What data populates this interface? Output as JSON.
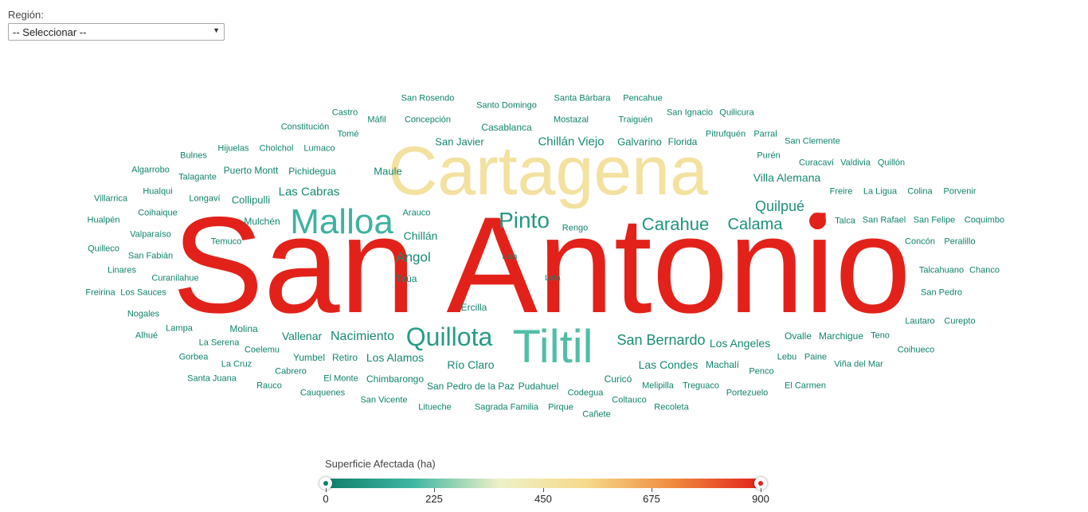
{
  "filter": {
    "label": "Región:",
    "selected": "-- Seleccionar --"
  },
  "colors": {
    "scale": [
      "#0e7f6a",
      "#3fb6a3",
      "#eef1c8",
      "#f6d98a",
      "#f08a3e",
      "#e2221a"
    ],
    "marker": "#e2221a"
  },
  "words": [
    {
      "text": "San Antonio",
      "value": 900
    },
    {
      "text": "Cartagena",
      "value": 480
    },
    {
      "text": "Tiltil",
      "value": 200
    },
    {
      "text": "Malloa",
      "value": 170
    },
    {
      "text": "Quillota",
      "value": 90
    },
    {
      "text": "Pinto",
      "value": 80
    },
    {
      "text": "Carahue",
      "value": 70
    },
    {
      "text": "Calama",
      "value": 60
    },
    {
      "text": "Quilpué",
      "value": 55
    },
    {
      "text": "San Bernardo",
      "value": 45
    },
    {
      "text": "Nacimiento",
      "value": 40
    },
    {
      "text": "Angol",
      "value": 40
    },
    {
      "text": "Las Cabras",
      "value": 35
    },
    {
      "text": "Chillán Viejo",
      "value": 35
    },
    {
      "text": "Villa Alemana",
      "value": 32
    },
    {
      "text": "Los Angeles",
      "value": 32
    },
    {
      "text": "Los Alamos",
      "value": 32
    },
    {
      "text": "Vallenar",
      "value": 30
    },
    {
      "text": "Río Claro",
      "value": 30
    },
    {
      "text": "Las Condes",
      "value": 30
    },
    {
      "text": "Chillán",
      "value": 28
    },
    {
      "text": "Collipulli",
      "value": 28
    },
    {
      "text": "Galvarino",
      "value": 26
    },
    {
      "text": "Maule",
      "value": 26
    },
    {
      "text": "San Javier",
      "value": 26
    },
    {
      "text": "Pichidegua",
      "value": 22
    },
    {
      "text": "Casablanca",
      "value": 22
    },
    {
      "text": "Tirúa",
      "value": 20
    },
    {
      "text": "Ercilla",
      "value": 20
    },
    {
      "text": "Ovalle",
      "value": 20
    },
    {
      "text": "Retiro",
      "value": 20
    },
    {
      "text": "Yumbel",
      "value": 20
    },
    {
      "text": "Molina",
      "value": 20
    },
    {
      "text": "Mulchén",
      "value": 18
    },
    {
      "text": "Machalí",
      "value": 18
    },
    {
      "text": "Marchigue",
      "value": 16
    },
    {
      "text": "Pudahuel",
      "value": 16
    },
    {
      "text": "Chimbarongo",
      "value": 16
    },
    {
      "text": "San Pedro de la Paz",
      "value": 14
    },
    {
      "text": "Curicó",
      "value": 14
    },
    {
      "text": "Melipilla",
      "value": 14
    },
    {
      "text": "Florida",
      "value": 14
    },
    {
      "text": "Puerto Montt",
      "value": 14
    },
    {
      "text": "Temuco",
      "value": 14
    },
    {
      "text": "Curanilahue",
      "value": 14
    },
    {
      "text": "Rengo",
      "value": 14
    },
    {
      "text": "Arauco",
      "value": 14
    },
    {
      "text": "Laja",
      "value": 12
    },
    {
      "text": "Lota",
      "value": 12
    },
    {
      "text": "Talca",
      "value": 12
    },
    {
      "text": "Hijuelas",
      "value": 12
    },
    {
      "text": "Lumaco",
      "value": 12
    },
    {
      "text": "Cholchol",
      "value": 12
    },
    {
      "text": "Constitución",
      "value": 12
    },
    {
      "text": "Concepción",
      "value": 12
    },
    {
      "text": "Mostazal",
      "value": 12
    },
    {
      "text": "Traiguén",
      "value": 12
    },
    {
      "text": "Pitrufquén",
      "value": 12
    },
    {
      "text": "Parral",
      "value": 12
    },
    {
      "text": "San Clemente",
      "value": 12
    },
    {
      "text": "Purén",
      "value": 12
    },
    {
      "text": "Curacaví",
      "value": 12
    },
    {
      "text": "Valdivia",
      "value": 12
    },
    {
      "text": "Quillón",
      "value": 12
    },
    {
      "text": "Freire",
      "value": 12
    },
    {
      "text": "La Ligua",
      "value": 12
    },
    {
      "text": "Colina",
      "value": 12
    },
    {
      "text": "Porvenir",
      "value": 10
    },
    {
      "text": "San Rafael",
      "value": 12
    },
    {
      "text": "San Felipe",
      "value": 12
    },
    {
      "text": "Coquimbo",
      "value": 10
    },
    {
      "text": "Concón",
      "value": 10
    },
    {
      "text": "Peralillo",
      "value": 10
    },
    {
      "text": "Talcahuano",
      "value": 10
    },
    {
      "text": "Chanco",
      "value": 10
    },
    {
      "text": "San Pedro",
      "value": 10
    },
    {
      "text": "Lautaro",
      "value": 10
    },
    {
      "text": "Curepto",
      "value": 10
    },
    {
      "text": "Coihueco",
      "value": 10
    },
    {
      "text": "Teno",
      "value": 10
    },
    {
      "text": "Viña del Mar",
      "value": 10
    },
    {
      "text": "Paine",
      "value": 10
    },
    {
      "text": "Lebu",
      "value": 10
    },
    {
      "text": "El Carmen",
      "value": 10
    },
    {
      "text": "Portezuelo",
      "value": 10
    },
    {
      "text": "Penco",
      "value": 10
    },
    {
      "text": "Treguaco",
      "value": 10
    },
    {
      "text": "Recoleta",
      "value": 10
    },
    {
      "text": "Coltauco",
      "value": 10
    },
    {
      "text": "Cañete",
      "value": 10
    },
    {
      "text": "Codegua",
      "value": 10
    },
    {
      "text": "Pirque",
      "value": 10
    },
    {
      "text": "Sagrada Familia",
      "value": 10
    },
    {
      "text": "Litueche",
      "value": 10
    },
    {
      "text": "San Vicente",
      "value": 10
    },
    {
      "text": "Cauquenes",
      "value": 10
    },
    {
      "text": "El Monte",
      "value": 10
    },
    {
      "text": "Cabrero",
      "value": 10
    },
    {
      "text": "Rauco",
      "value": 10
    },
    {
      "text": "Santa Juana",
      "value": 10
    },
    {
      "text": "La Cruz",
      "value": 10
    },
    {
      "text": "Gorbea",
      "value": 10
    },
    {
      "text": "Coelemu",
      "value": 10
    },
    {
      "text": "La Serena",
      "value": 10
    },
    {
      "text": "Lampa",
      "value": 10
    },
    {
      "text": "Alhué",
      "value": 10
    },
    {
      "text": "Nogales",
      "value": 10
    },
    {
      "text": "Los Sauces",
      "value": 10
    },
    {
      "text": "Freirina",
      "value": 10
    },
    {
      "text": "Linares",
      "value": 10
    },
    {
      "text": "San Fabián",
      "value": 10
    },
    {
      "text": "Quilleco",
      "value": 10
    },
    {
      "text": "Valparaíso",
      "value": 10
    },
    {
      "text": "Hualpén",
      "value": 10
    },
    {
      "text": "Coihaique",
      "value": 10
    },
    {
      "text": "Villarrica",
      "value": 10
    },
    {
      "text": "Hualqui",
      "value": 10
    },
    {
      "text": "Longaví",
      "value": 10
    },
    {
      "text": "Algarrobo",
      "value": 10
    },
    {
      "text": "Talagante",
      "value": 10
    },
    {
      "text": "Bulnes",
      "value": 10
    },
    {
      "text": "Castro",
      "value": 10
    },
    {
      "text": "Máfil",
      "value": 10
    },
    {
      "text": "Tomé",
      "value": 10
    },
    {
      "text": "San Rosendo",
      "value": 10
    },
    {
      "text": "Santo Domingo",
      "value": 10
    },
    {
      "text": "Santa Bárbara",
      "value": 10
    },
    {
      "text": "Pencahue",
      "value": 10
    },
    {
      "text": "San Ignacio",
      "value": 10
    },
    {
      "text": "Quilicura",
      "value": 10
    }
  ],
  "legend": {
    "title": "Superficie Afectada (ha)",
    "ticks": [
      "0",
      "225",
      "450",
      "675",
      "900"
    ],
    "min": 0,
    "max": 900
  }
}
